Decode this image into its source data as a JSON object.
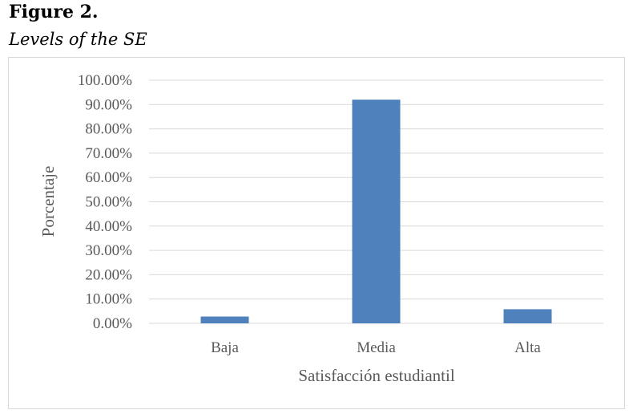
{
  "figure": {
    "label": "Figure 2.",
    "caption": "Levels of the SE"
  },
  "chart_data": {
    "type": "bar",
    "categories": [
      "Baja",
      "Media",
      "Alta"
    ],
    "values": [
      2.8,
      92.0,
      5.8
    ],
    "value_format": "percent",
    "xlabel": "Satisfacción estudiantil",
    "ylabel": "Porcentaje",
    "ylim": [
      0,
      100
    ],
    "yticks": [
      0,
      10,
      20,
      30,
      40,
      50,
      60,
      70,
      80,
      90,
      100
    ],
    "ytick_labels": [
      "0.00%",
      "10.00%",
      "20.00%",
      "30.00%",
      "40.00%",
      "50.00%",
      "60.00%",
      "70.00%",
      "80.00%",
      "90.00%",
      "100.00%"
    ],
    "grid": true,
    "legend": "none",
    "bar_color": "#4f81bd",
    "grid_color": "#d9d9d9"
  }
}
